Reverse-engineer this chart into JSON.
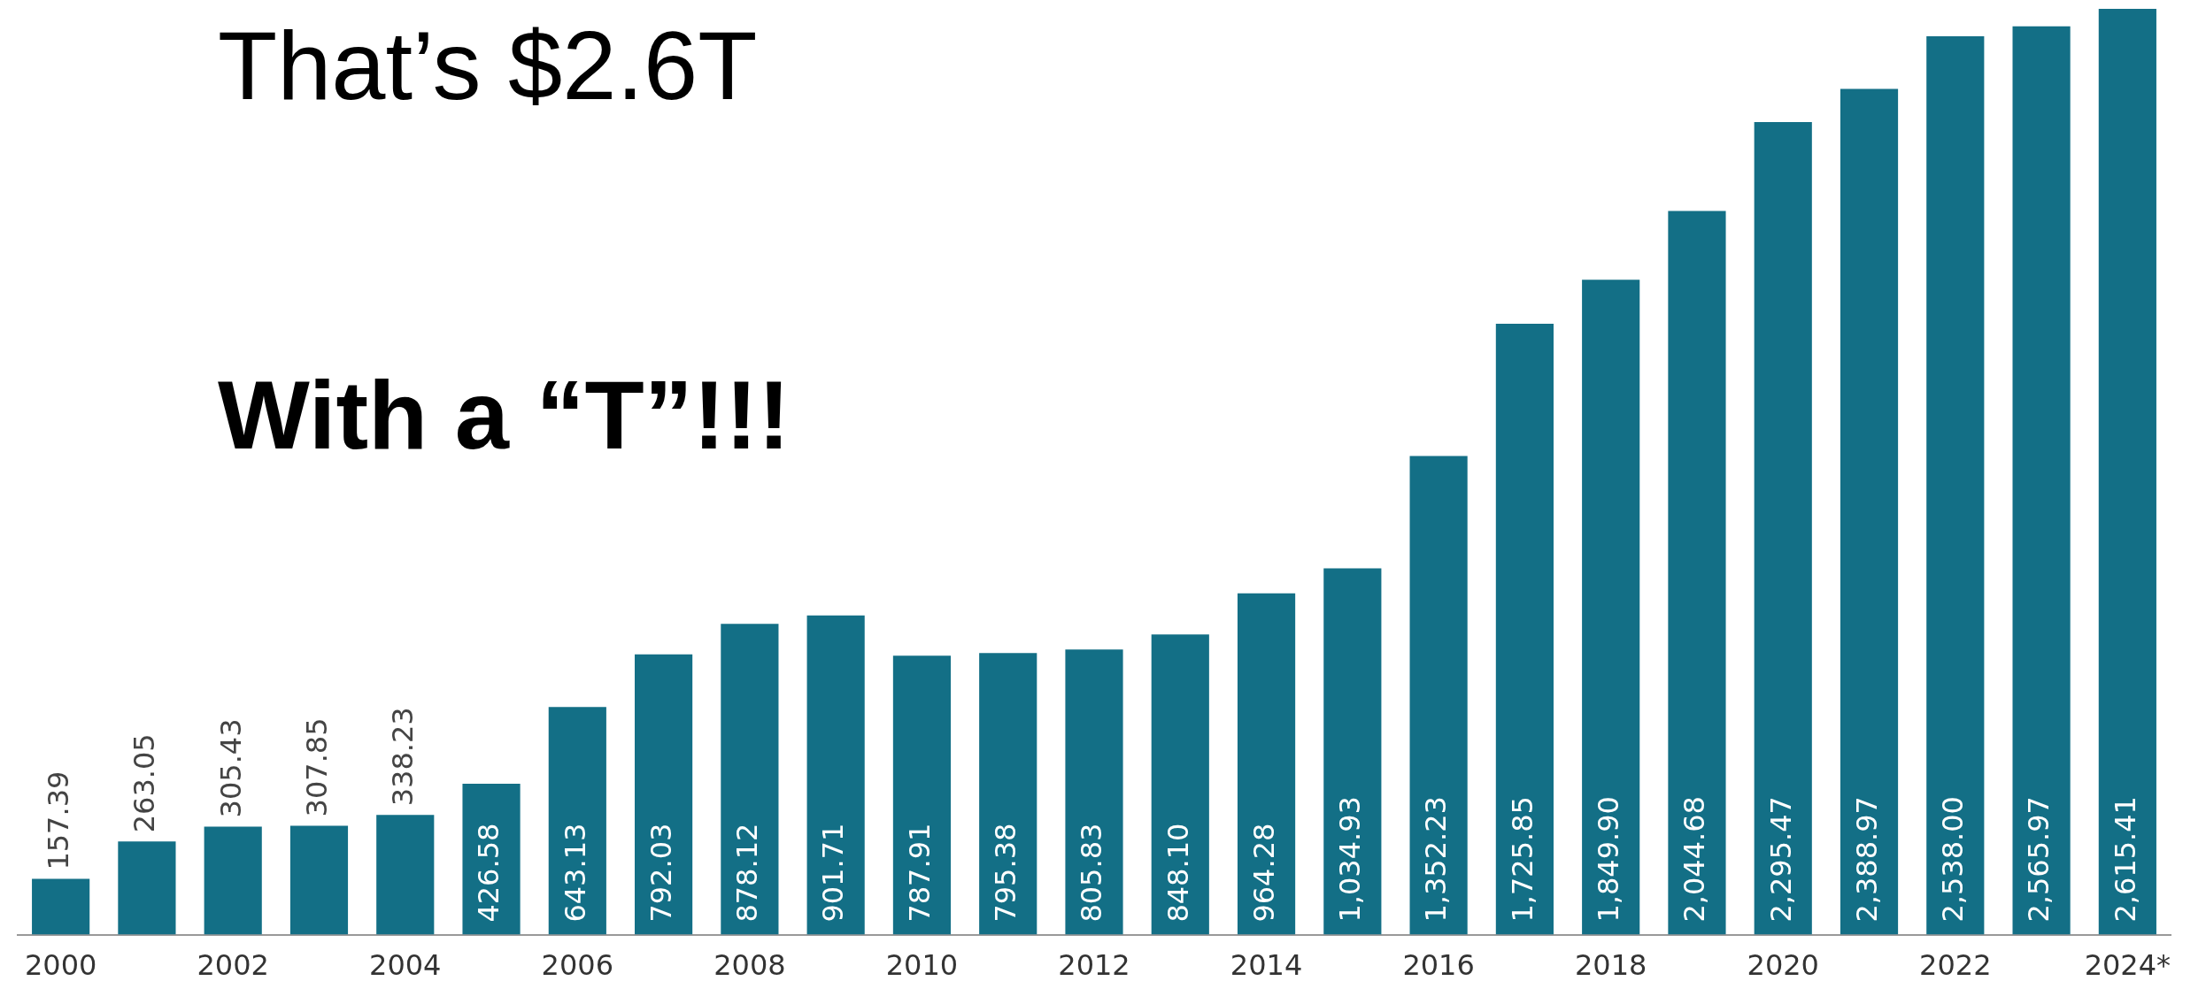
{
  "chart_data": {
    "type": "bar",
    "title": "That’s $2.6T",
    "subtitle": "With a “T”!!!",
    "categories": [
      "2000",
      null,
      "2002",
      null,
      "2004",
      null,
      "2006",
      null,
      "2008",
      null,
      "2010",
      null,
      "2012",
      null,
      "2014",
      null,
      "2016",
      null,
      "2018",
      null,
      "2020",
      null,
      "2022",
      null,
      "2024*"
    ],
    "values": [
      157.39,
      263.05,
      305.43,
      307.85,
      338.23,
      426.58,
      643.13,
      792.03,
      878.12,
      901.71,
      787.91,
      795.38,
      805.83,
      848.1,
      964.28,
      1034.93,
      1352.23,
      1725.85,
      1849.9,
      2044.68,
      2295.47,
      2388.97,
      2538.0,
      2565.97,
      2615.41
    ],
    "value_labels": [
      "157.39",
      "263.05",
      "305.43",
      "307.85",
      "338.23",
      "426.58",
      "643.13",
      "792.03",
      "878.12",
      "901.71",
      "787.91",
      "795.38",
      "805.83",
      "848.10",
      "964.28",
      "1,034.93",
      "1,352.23",
      "1,725.85",
      "1,849.90",
      "2,044.68",
      "2,295.47",
      "2,388.97",
      "2,538.00",
      "2,565.97",
      "2,615.41"
    ],
    "color": "#136f86"
  }
}
